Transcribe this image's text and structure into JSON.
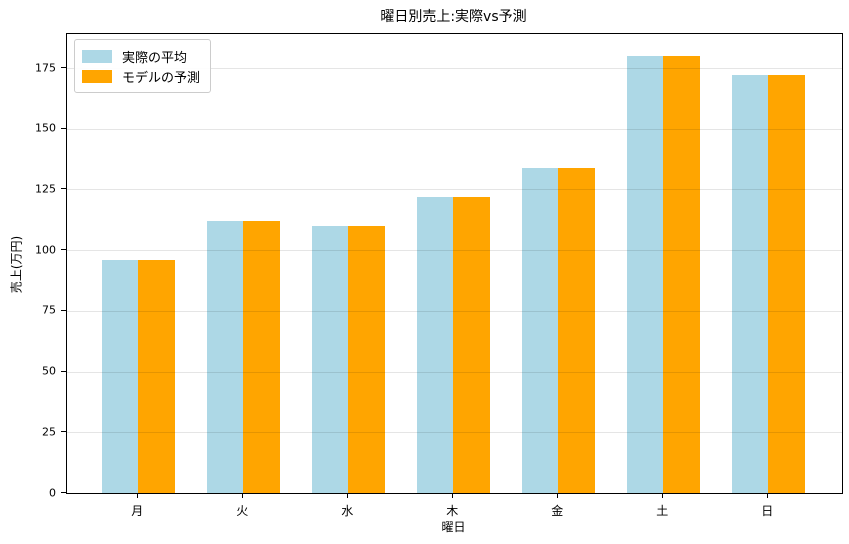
{
  "chart_data": {
    "type": "bar",
    "title": "曜日別売上:実際vs予測",
    "xlabel": "曜日",
    "ylabel": "売上(万円)",
    "categories": [
      "月",
      "火",
      "水",
      "木",
      "金",
      "土",
      "日"
    ],
    "series": [
      {
        "name": "実際の平均",
        "color": "#ADD8E6",
        "values": [
          96,
          112,
          110,
          122,
          134,
          180,
          172
        ]
      },
      {
        "name": "モデルの予測",
        "color": "#FFA500",
        "values": [
          96,
          112,
          110,
          122,
          134,
          180,
          172
        ]
      }
    ],
    "ylim": [
      0,
      189
    ],
    "yticks": [
      0,
      25,
      50,
      75,
      100,
      125,
      150,
      175
    ],
    "grid": "horizontal",
    "legend_position": "upper-left"
  }
}
